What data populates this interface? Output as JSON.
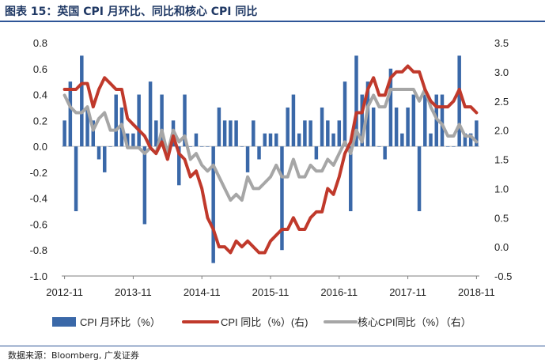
{
  "title": "图表 15：英国 CPI 月环比、同比和核心 CPI 同比",
  "source": "数据来源：Bloomberg, 广发证券",
  "colors": {
    "bar": "#3a68a8",
    "cpi_yoy": "#c0392b",
    "core": "#a6a6a6",
    "title": "#1f3864"
  },
  "chart_data": {
    "type": "bar",
    "x_tick_labels": [
      "2012-11",
      "2013-11",
      "2014-11",
      "2015-11",
      "2016-11",
      "2017-11",
      "2018-11"
    ],
    "y_left": {
      "ylim": [
        -1.0,
        0.8
      ],
      "ticks": [
        "0.8",
        "0.6",
        "0.4",
        "0.2",
        "0.0",
        "-0.2",
        "-0.4",
        "-0.6",
        "-0.8",
        "-1.0"
      ]
    },
    "y_right": {
      "ylim": [
        -0.5,
        3.5
      ],
      "ticks": [
        "3.5",
        "3.0",
        "2.5",
        "2.0",
        "1.5",
        "1.0",
        "0.5",
        "0.0",
        "-0.5"
      ]
    },
    "months": [
      "2012-11",
      "2012-12",
      "2013-01",
      "2013-02",
      "2013-03",
      "2013-04",
      "2013-05",
      "2013-06",
      "2013-07",
      "2013-08",
      "2013-09",
      "2013-10",
      "2013-11",
      "2013-12",
      "2014-01",
      "2014-02",
      "2014-03",
      "2014-04",
      "2014-05",
      "2014-06",
      "2014-07",
      "2014-08",
      "2014-09",
      "2014-10",
      "2014-11",
      "2014-12",
      "2015-01",
      "2015-02",
      "2015-03",
      "2015-04",
      "2015-05",
      "2015-06",
      "2015-07",
      "2015-08",
      "2015-09",
      "2015-10",
      "2015-11",
      "2015-12",
      "2016-01",
      "2016-02",
      "2016-03",
      "2016-04",
      "2016-05",
      "2016-06",
      "2016-07",
      "2016-08",
      "2016-09",
      "2016-10",
      "2016-11",
      "2016-12",
      "2017-01",
      "2017-02",
      "2017-03",
      "2017-04",
      "2017-05",
      "2017-06",
      "2017-07",
      "2017-08",
      "2017-09",
      "2017-10",
      "2017-11",
      "2017-12",
      "2018-01",
      "2018-02",
      "2018-03",
      "2018-04",
      "2018-05",
      "2018-06",
      "2018-07",
      "2018-08",
      "2018-09",
      "2018-10",
      "2018-11"
    ],
    "series": [
      {
        "name": "CPI 月环比（%）",
        "axis": "left",
        "type": "bar",
        "values": [
          0.2,
          0.5,
          -0.5,
          0.7,
          0.3,
          0.2,
          -0.1,
          -0.2,
          0.0,
          0.4,
          0.3,
          0.1,
          0.1,
          0.4,
          -0.6,
          0.5,
          0.2,
          0.4,
          -0.1,
          0.2,
          -0.3,
          0.4,
          0.0,
          0.1,
          0.0,
          0.0,
          -0.9,
          0.3,
          0.2,
          0.2,
          0.2,
          0.0,
          -0.2,
          0.2,
          -0.1,
          0.1,
          0.1,
          0.1,
          -0.8,
          0.3,
          0.4,
          0.1,
          0.2,
          0.2,
          -0.1,
          0.3,
          0.2,
          0.1,
          0.2,
          0.5,
          -0.5,
          0.7,
          0.4,
          0.5,
          0.3,
          0.0,
          -0.1,
          0.6,
          0.3,
          0.1,
          0.3,
          0.4,
          -0.5,
          0.4,
          0.1,
          0.4,
          0.4,
          0.0,
          0.0,
          0.7,
          0.1,
          0.1,
          0.2
        ]
      },
      {
        "name": "CPI 同比（%）（右）",
        "axis": "right",
        "type": "line",
        "values": [
          2.7,
          2.7,
          2.7,
          2.8,
          2.8,
          2.4,
          2.7,
          2.9,
          2.8,
          2.7,
          2.7,
          2.2,
          2.1,
          2.0,
          1.9,
          1.7,
          1.6,
          1.8,
          1.5,
          1.9,
          1.6,
          1.5,
          1.2,
          1.3,
          1.0,
          0.5,
          0.3,
          0.0,
          0.0,
          -0.1,
          0.1,
          0.0,
          0.1,
          0.0,
          -0.1,
          -0.1,
          0.1,
          0.2,
          0.3,
          0.3,
          0.5,
          0.3,
          0.3,
          0.5,
          0.6,
          0.6,
          1.0,
          0.9,
          1.2,
          1.6,
          1.8,
          2.3,
          2.3,
          2.7,
          2.9,
          2.6,
          2.6,
          2.9,
          3.0,
          3.0,
          3.1,
          3.0,
          3.0,
          2.7,
          2.5,
          2.4,
          2.4,
          2.4,
          2.5,
          2.7,
          2.4,
          2.4,
          2.3
        ]
      },
      {
        "name": "核心CPI同比（%）（右）",
        "axis": "right",
        "type": "line",
        "values": [
          2.6,
          2.4,
          2.3,
          2.3,
          2.4,
          2.0,
          2.2,
          2.3,
          2.0,
          2.0,
          2.1,
          1.7,
          1.7,
          1.7,
          1.6,
          1.7,
          1.6,
          2.0,
          1.6,
          2.0,
          1.8,
          1.9,
          1.5,
          1.6,
          1.4,
          1.3,
          1.4,
          1.2,
          1.0,
          0.8,
          0.9,
          0.8,
          1.2,
          1.0,
          1.0,
          1.1,
          1.2,
          1.4,
          1.2,
          1.2,
          1.5,
          1.2,
          1.2,
          1.4,
          1.3,
          1.3,
          1.5,
          1.4,
          1.6,
          1.8,
          1.6,
          2.0,
          1.8,
          2.4,
          2.6,
          2.4,
          2.4,
          2.7,
          2.7,
          2.7,
          2.7,
          2.7,
          2.5,
          2.7,
          2.4,
          2.2,
          2.1,
          1.9,
          1.9,
          2.1,
          1.9,
          1.9,
          1.8
        ]
      }
    ],
    "legend": [
      "CPI 月环比（%）",
      "CPI 同比（%）(右)",
      "核心CPI同比（%）（右）"
    ]
  }
}
